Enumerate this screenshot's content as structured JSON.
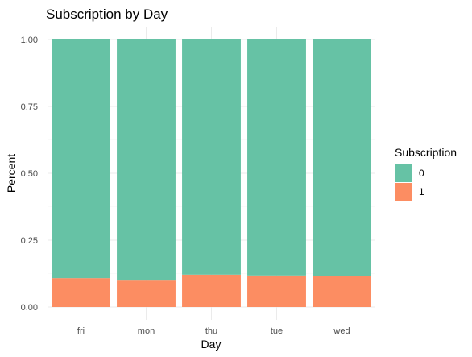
{
  "chart_data": {
    "type": "bar",
    "stacked": true,
    "title": "Subscription by Day",
    "xlabel": "Day",
    "ylabel": "Percent",
    "categories": [
      "fri",
      "mon",
      "thu",
      "tue",
      "wed"
    ],
    "ylim": [
      0,
      1
    ],
    "yticks": [
      "0.00",
      "0.25",
      "0.50",
      "0.75",
      "1.00"
    ],
    "series": [
      {
        "name": "1",
        "color": "#FC8D62",
        "values": [
          0.108,
          0.099,
          0.121,
          0.118,
          0.117
        ]
      },
      {
        "name": "0",
        "color": "#66C2A5",
        "values": [
          0.892,
          0.901,
          0.879,
          0.882,
          0.883
        ]
      }
    ],
    "legend": {
      "title": "Subscription",
      "position": "right",
      "entries": [
        {
          "label": "0",
          "color": "#66C2A5"
        },
        {
          "label": "1",
          "color": "#FC8D62"
        }
      ]
    },
    "grid": true
  }
}
